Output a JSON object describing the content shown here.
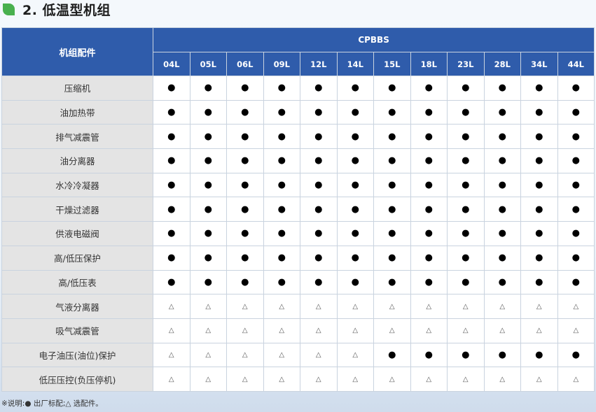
{
  "header": {
    "title": "2. 低温型机组"
  },
  "table": {
    "corner_label": "机组配件",
    "model": "CPBBS",
    "sizes": [
      "04L",
      "05L",
      "06L",
      "09L",
      "12L",
      "14L",
      "15L",
      "18L",
      "23L",
      "28L",
      "34L",
      "44L"
    ],
    "symbols": {
      "std": "●",
      "opt": "△"
    },
    "rows": [
      {
        "name": "压缩机",
        "cells": [
          "std",
          "std",
          "std",
          "std",
          "std",
          "std",
          "std",
          "std",
          "std",
          "std",
          "std",
          "std"
        ]
      },
      {
        "name": "油加热带",
        "cells": [
          "std",
          "std",
          "std",
          "std",
          "std",
          "std",
          "std",
          "std",
          "std",
          "std",
          "std",
          "std"
        ]
      },
      {
        "name": "排气减震管",
        "cells": [
          "std",
          "std",
          "std",
          "std",
          "std",
          "std",
          "std",
          "std",
          "std",
          "std",
          "std",
          "std"
        ]
      },
      {
        "name": "油分离器",
        "cells": [
          "std",
          "std",
          "std",
          "std",
          "std",
          "std",
          "std",
          "std",
          "std",
          "std",
          "std",
          "std"
        ]
      },
      {
        "name": "水冷冷凝器",
        "cells": [
          "std",
          "std",
          "std",
          "std",
          "std",
          "std",
          "std",
          "std",
          "std",
          "std",
          "std",
          "std"
        ]
      },
      {
        "name": "干燥过滤器",
        "cells": [
          "std",
          "std",
          "std",
          "std",
          "std",
          "std",
          "std",
          "std",
          "std",
          "std",
          "std",
          "std"
        ]
      },
      {
        "name": "供液电磁阀",
        "cells": [
          "std",
          "std",
          "std",
          "std",
          "std",
          "std",
          "std",
          "std",
          "std",
          "std",
          "std",
          "std"
        ]
      },
      {
        "name": "高/低压保护",
        "cells": [
          "std",
          "std",
          "std",
          "std",
          "std",
          "std",
          "std",
          "std",
          "std",
          "std",
          "std",
          "std"
        ]
      },
      {
        "name": "高/低压表",
        "cells": [
          "std",
          "std",
          "std",
          "std",
          "std",
          "std",
          "std",
          "std",
          "std",
          "std",
          "std",
          "std"
        ]
      },
      {
        "name": "气液分离器",
        "cells": [
          "opt",
          "opt",
          "opt",
          "opt",
          "opt",
          "opt",
          "opt",
          "opt",
          "opt",
          "opt",
          "opt",
          "opt"
        ]
      },
      {
        "name": "吸气减震管",
        "cells": [
          "opt",
          "opt",
          "opt",
          "opt",
          "opt",
          "opt",
          "opt",
          "opt",
          "opt",
          "opt",
          "opt",
          "opt"
        ]
      },
      {
        "name": "电子油压(油位)保护",
        "cells": [
          "opt",
          "opt",
          "opt",
          "opt",
          "opt",
          "opt",
          "std",
          "std",
          "std",
          "std",
          "std",
          "std"
        ]
      },
      {
        "name": "低压压控(负压停机)",
        "cells": [
          "opt",
          "opt",
          "opt",
          "opt",
          "opt",
          "opt",
          "opt",
          "opt",
          "opt",
          "opt",
          "opt",
          "opt"
        ]
      }
    ]
  },
  "footer": {
    "note": "※说明:● 出厂标配;△ 选配件。"
  }
}
